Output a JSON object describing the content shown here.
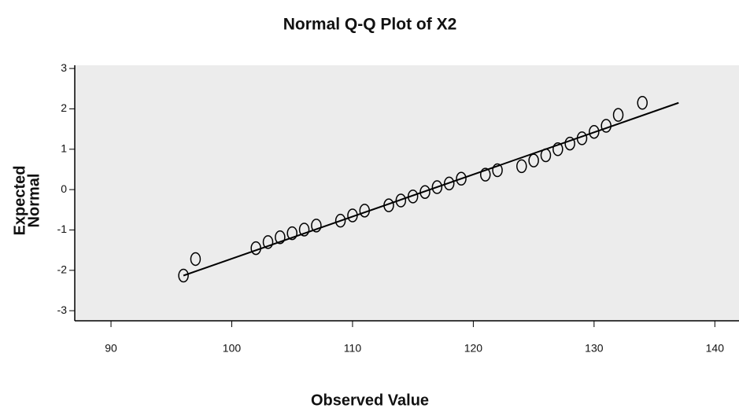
{
  "chart_data": {
    "type": "scatter",
    "title": "Normal Q-Q Plot of X2",
    "xlabel": "Observed Value",
    "ylabel": [
      "Expected",
      "Normal"
    ],
    "x": [
      96,
      97,
      102,
      103,
      104,
      105,
      106,
      107,
      109,
      110,
      111,
      113,
      114,
      115,
      116,
      117,
      118,
      119,
      121,
      122,
      124,
      125,
      126,
      127,
      128,
      129,
      130,
      131,
      132,
      134
    ],
    "values": [
      -2.13,
      -1.72,
      -1.45,
      -1.3,
      -1.18,
      -1.08,
      -0.99,
      -0.89,
      -0.77,
      -0.64,
      -0.52,
      -0.39,
      -0.27,
      -0.17,
      -0.06,
      0.06,
      0.15,
      0.27,
      0.37,
      0.48,
      0.58,
      0.72,
      0.85,
      1.0,
      1.14,
      1.27,
      1.43,
      1.58,
      1.85,
      2.15
    ],
    "color": "#000000",
    "line": {
      "x": [
        96,
        137
      ],
      "y": [
        -2.13,
        2.15
      ],
      "color": "#000000"
    },
    "background": "#ececec",
    "xlim": [
      87,
      142
    ],
    "ylim": [
      -3.25,
      3.08
    ],
    "xticks": [
      90,
      100,
      110,
      120,
      130,
      140
    ],
    "yticks": [
      -3,
      -2,
      -1,
      0,
      1,
      2,
      3
    ],
    "grid": false
  }
}
